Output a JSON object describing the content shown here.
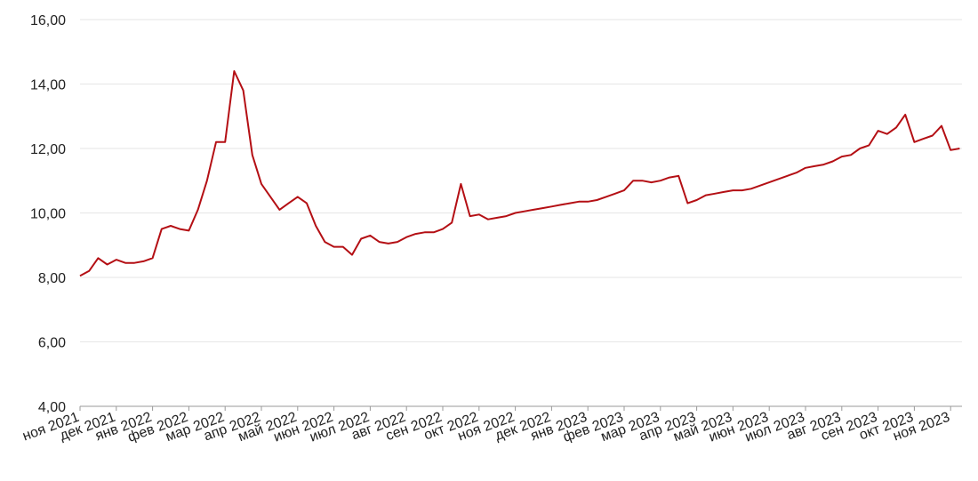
{
  "chart_data": {
    "type": "line",
    "categories": [
      "ноя 2021",
      null,
      null,
      null,
      "дек 2021",
      null,
      null,
      null,
      "янв 2022",
      null,
      null,
      null,
      "фев 2022",
      null,
      null,
      null,
      "мар 2022",
      null,
      null,
      null,
      "апр 2022",
      null,
      null,
      null,
      "май 2022",
      null,
      null,
      null,
      "июн 2022",
      null,
      null,
      null,
      "июл 2022",
      null,
      null,
      null,
      "авг 2022",
      null,
      null,
      null,
      "сен 2022",
      null,
      null,
      null,
      "окт 2022",
      null,
      null,
      null,
      "ноя 2022",
      null,
      null,
      null,
      "дек 2022",
      null,
      null,
      null,
      "янв 2023",
      null,
      null,
      null,
      "фев 2023",
      null,
      null,
      null,
      "мар 2023",
      null,
      null,
      null,
      "апр 2023",
      null,
      null,
      null,
      "май 2023",
      null,
      null,
      null,
      "июн 2023",
      null,
      null,
      null,
      "июл 2023",
      null,
      null,
      null,
      "авг 2023",
      null,
      null,
      null,
      "сен 2023",
      null,
      null,
      null,
      "окт 2023",
      null,
      null,
      null,
      "ноя 2023",
      null
    ],
    "series": [
      {
        "color": "#b40f14",
        "values": [
          8.05,
          8.2,
          8.6,
          8.4,
          8.55,
          8.45,
          8.45,
          8.5,
          8.6,
          9.5,
          9.6,
          9.5,
          9.45,
          10.1,
          11.0,
          12.2,
          12.2,
          14.4,
          13.8,
          11.8,
          10.9,
          10.5,
          10.1,
          10.3,
          10.5,
          10.3,
          9.6,
          9.1,
          8.95,
          8.95,
          8.7,
          9.2,
          9.3,
          9.1,
          9.05,
          9.1,
          9.25,
          9.35,
          9.4,
          9.4,
          9.5,
          9.7,
          10.9,
          9.9,
          9.95,
          9.8,
          9.85,
          9.9,
          10.0,
          10.05,
          10.1,
          10.15,
          10.2,
          10.25,
          10.3,
          10.35,
          10.35,
          10.4,
          10.5,
          10.6,
          10.7,
          11.0,
          11.0,
          10.95,
          11.0,
          11.1,
          11.15,
          10.3,
          10.4,
          10.55,
          10.6,
          10.65,
          10.7,
          10.7,
          10.75,
          10.85,
          10.95,
          11.05,
          11.15,
          11.25,
          11.4,
          11.45,
          11.5,
          11.6,
          11.75,
          11.8,
          12.0,
          12.1,
          12.55,
          12.45,
          12.65,
          13.05,
          12.2,
          12.3,
          12.4,
          12.7,
          11.95,
          12.0
        ]
      }
    ],
    "ylim": [
      4,
      16
    ],
    "yticks": [
      {
        "value": 4,
        "label": "4,00"
      },
      {
        "value": 6,
        "label": "6,00"
      },
      {
        "value": 8,
        "label": "8,00"
      },
      {
        "value": 10,
        "label": "10,00"
      },
      {
        "value": 12,
        "label": "12,00"
      },
      {
        "value": 14,
        "label": "14,00"
      },
      {
        "value": 16,
        "label": "16,00"
      }
    ],
    "grid": true
  }
}
